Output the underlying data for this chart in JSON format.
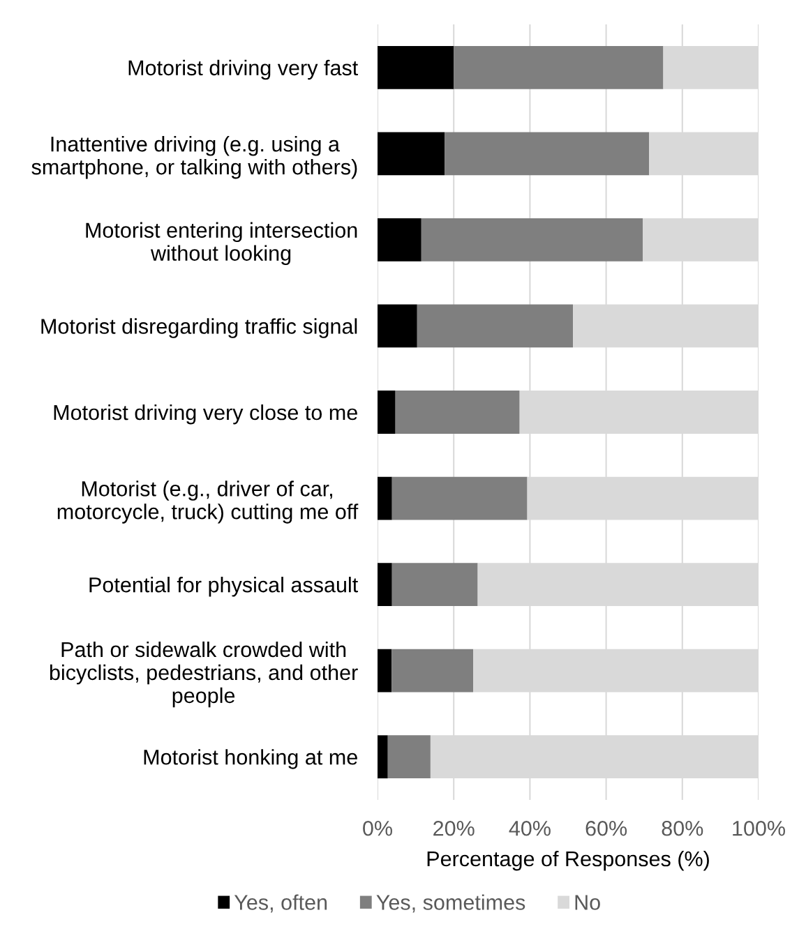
{
  "chart_data": {
    "type": "bar",
    "orientation": "horizontal",
    "stacked": true,
    "categories": [
      "Motorist driving very fast",
      "Inattentive driving (e.g. using a\nsmartphone, or talking with others)",
      "Motorist entering intersection\nwithout looking",
      "Motorist disregarding traffic signal",
      "Motorist driving very close to me",
      "Motorist (e.g., driver of car,\nmotorcycle, truck) cutting me off",
      "Potential for physical assault",
      "Path or sidewalk crowded with\nbicyclists, pedestrians, and other\npeople",
      "Motorist honking at me"
    ],
    "series": [
      {
        "name": "Yes, often",
        "color": "#000000",
        "values": [
          20.0,
          17.6,
          11.5,
          10.4,
          4.7,
          3.8,
          3.8,
          3.7,
          2.7
        ]
      },
      {
        "name": "Yes, sometimes",
        "color": "#7f7f7f",
        "values": [
          55.0,
          53.7,
          58.1,
          40.9,
          32.6,
          35.5,
          22.5,
          21.4,
          11.2
        ]
      },
      {
        "name": "No",
        "color": "#d9d9d9",
        "values": [
          25.0,
          28.7,
          30.4,
          48.7,
          62.7,
          60.7,
          73.7,
          74.9,
          86.1
        ]
      }
    ],
    "xlabel": "Percentage of Responses (%)",
    "xlim": [
      0,
      100
    ],
    "xticks": [
      {
        "value": 0,
        "label": "0%"
      },
      {
        "value": 20,
        "label": "20%"
      },
      {
        "value": 40,
        "label": "40%"
      },
      {
        "value": 60,
        "label": "60%"
      },
      {
        "value": 80,
        "label": "80%"
      },
      {
        "value": 100,
        "label": "100%"
      }
    ],
    "grid": "x",
    "legend": "bottom"
  }
}
